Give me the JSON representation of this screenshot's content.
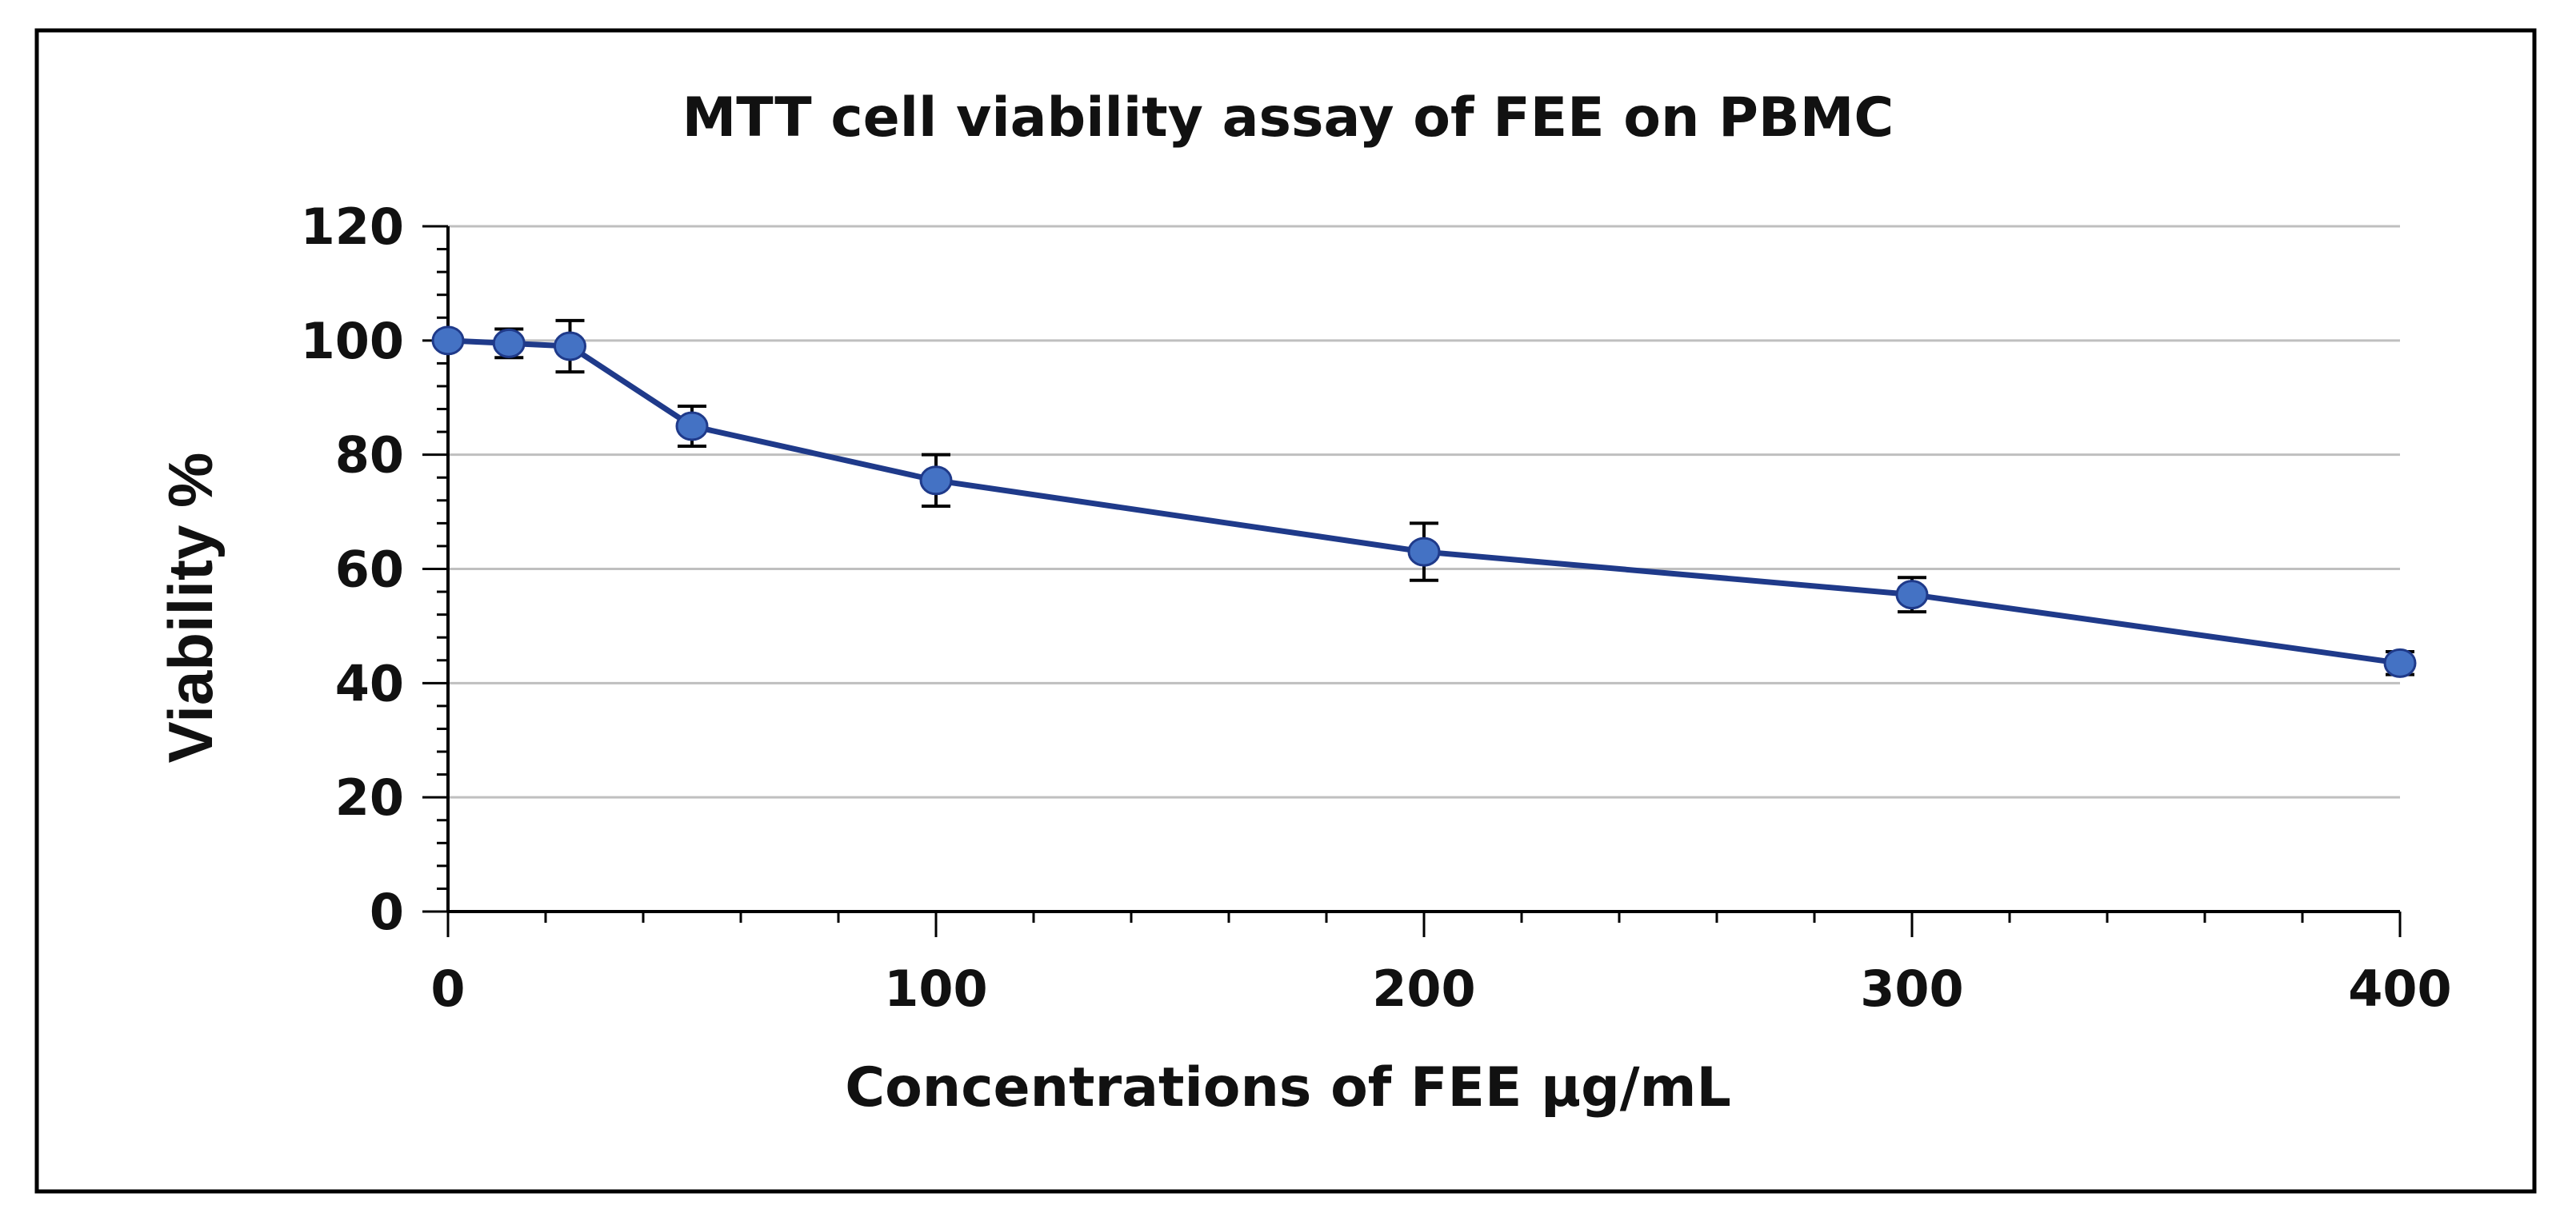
{
  "chart_data": {
    "type": "line",
    "title": "MTT cell viability assay of FEE on PBMC",
    "xlabel": "Concentrations of FEE µg/mL",
    "ylabel": "Viability %",
    "xlim": [
      0,
      400
    ],
    "ylim": [
      0,
      120
    ],
    "xticks": [
      0,
      100,
      200,
      300,
      400
    ],
    "yticks": [
      0,
      20,
      40,
      60,
      80,
      100,
      120
    ],
    "grid": "horizontal",
    "series": [
      {
        "name": "Viability",
        "color": "#1F3A8A",
        "marker_color": "#4472C4",
        "x": [
          0,
          12.5,
          25,
          50,
          100,
          200,
          300,
          400
        ],
        "y": [
          100,
          99.5,
          99,
          85,
          75.5,
          63,
          55.5,
          43.5
        ],
        "error": [
          0,
          2.5,
          4.5,
          3.5,
          4.5,
          5,
          3,
          2
        ]
      }
    ]
  }
}
